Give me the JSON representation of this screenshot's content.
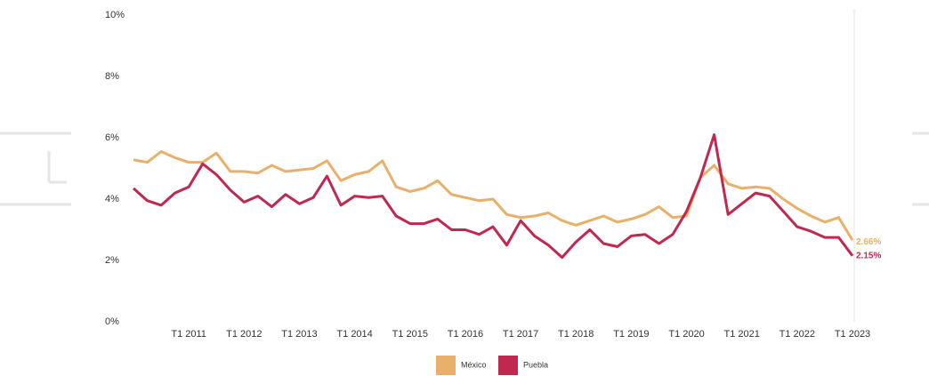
{
  "chart_data": {
    "type": "line",
    "categories": [
      null,
      null,
      null,
      null,
      "T1 2011",
      null,
      null,
      null,
      "T1 2012",
      null,
      null,
      null,
      "T1 2013",
      null,
      null,
      null,
      "T1 2014",
      null,
      null,
      null,
      "T1 2015",
      null,
      null,
      null,
      "T1 2016",
      null,
      null,
      null,
      "T1 2017",
      null,
      null,
      null,
      "T1 2018",
      null,
      null,
      null,
      "T1 2019",
      null,
      null,
      null,
      "T1 2020",
      null,
      null,
      null,
      "T1 2021",
      null,
      null,
      null,
      "T1 2022",
      null,
      null,
      null,
      "T1 2023"
    ],
    "series": [
      {
        "name": "México",
        "color": "#e8b06a",
        "values": [
          5.28,
          5.2,
          5.55,
          5.35,
          5.2,
          5.2,
          5.5,
          4.9,
          4.9,
          4.85,
          5.1,
          4.9,
          4.95,
          5.0,
          5.25,
          4.6,
          4.8,
          4.9,
          5.25,
          4.4,
          4.25,
          4.35,
          4.6,
          4.15,
          4.05,
          3.95,
          4.0,
          3.5,
          3.4,
          3.45,
          3.55,
          3.3,
          3.15,
          3.3,
          3.45,
          3.25,
          3.35,
          3.5,
          3.75,
          3.4,
          3.45,
          4.7,
          5.1,
          4.5,
          4.35,
          4.4,
          4.35,
          4.0,
          3.7,
          3.45,
          3.25,
          3.4,
          2.66
        ],
        "value_labels": [
          null,
          null,
          null,
          null,
          null,
          null,
          null,
          null,
          null,
          null,
          null,
          null,
          null,
          null,
          null,
          null,
          null,
          null,
          null,
          null,
          null,
          null,
          null,
          null,
          null,
          null,
          null,
          null,
          null,
          null,
          null,
          null,
          null,
          null,
          null,
          null,
          null,
          null,
          null,
          null,
          null,
          null,
          null,
          null,
          null,
          null,
          null,
          null,
          null,
          null,
          null,
          null,
          "2.66%"
        ]
      },
      {
        "name": "Puebla",
        "color": "#c0284f",
        "values": [
          4.35,
          3.95,
          3.8,
          4.2,
          4.4,
          5.15,
          4.8,
          4.3,
          3.9,
          4.1,
          3.75,
          4.15,
          3.85,
          4.05,
          4.75,
          3.8,
          4.1,
          4.05,
          4.1,
          3.45,
          3.2,
          3.2,
          3.35,
          3.0,
          3.0,
          2.85,
          3.1,
          2.5,
          3.3,
          2.8,
          2.5,
          2.1,
          2.6,
          3.0,
          2.55,
          2.45,
          2.8,
          2.85,
          2.55,
          2.85,
          3.6,
          4.7,
          6.1,
          3.5,
          3.85,
          4.2,
          4.1,
          3.6,
          3.1,
          2.95,
          2.75,
          2.75,
          2.15
        ],
        "value_labels": [
          null,
          null,
          null,
          null,
          null,
          null,
          null,
          null,
          null,
          null,
          null,
          null,
          null,
          null,
          null,
          null,
          null,
          null,
          null,
          null,
          null,
          null,
          null,
          null,
          null,
          null,
          null,
          null,
          null,
          null,
          null,
          null,
          null,
          null,
          null,
          null,
          null,
          null,
          null,
          null,
          null,
          null,
          null,
          null,
          null,
          null,
          null,
          null,
          null,
          null,
          null,
          null,
          "2.15%"
        ]
      }
    ],
    "ylim": [
      0,
      10
    ],
    "yticks": [
      {
        "value": 0,
        "label": "0%"
      },
      {
        "value": 2,
        "label": "2%"
      },
      {
        "value": 4,
        "label": "4%"
      },
      {
        "value": 6,
        "label": "6%"
      },
      {
        "value": 8,
        "label": "8%"
      },
      {
        "value": 10,
        "label": "10%"
      }
    ],
    "legend": "bottom"
  }
}
